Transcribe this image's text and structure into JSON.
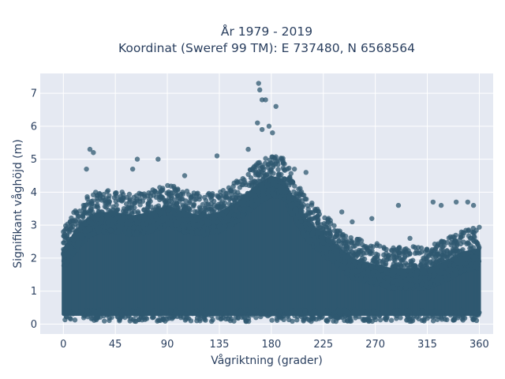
{
  "chart_data": {
    "type": "scatter",
    "title": "År 1979 - 2019",
    "subtitle": "Koordinat (Sweref 99 TM): E 737480, N 6568564",
    "xlabel": "Vågriktning (grader)",
    "ylabel": "Signifikant våghöjd (m)",
    "xlim": [
      -20,
      372
    ],
    "ylim": [
      -0.3,
      7.6
    ],
    "xticks": [
      0,
      45,
      90,
      135,
      180,
      225,
      270,
      315,
      360
    ],
    "yticks": [
      0,
      1,
      2,
      3,
      4,
      5,
      6,
      7
    ],
    "grid": true,
    "marker_color": "#2f5870",
    "background_color": "#e5e9f2",
    "envelope": {
      "directions": [
        0,
        10,
        20,
        30,
        45,
        60,
        75,
        90,
        105,
        120,
        135,
        150,
        160,
        170,
        180,
        190,
        200,
        210,
        225,
        240,
        250,
        260,
        270,
        285,
        300,
        315,
        330,
        345,
        360
      ],
      "dense_upper_m": [
        2.6,
        3.1,
        3.5,
        3.7,
        3.7,
        3.6,
        3.7,
        3.9,
        3.7,
        3.6,
        3.7,
        4.0,
        4.3,
        4.6,
        4.8,
        4.7,
        4.1,
        3.5,
        3.0,
        2.6,
        2.3,
        2.2,
        2.1,
        2.0,
        2.0,
        2.0,
        2.2,
        2.5,
        2.6
      ],
      "dense_lower_m": 0.3
    },
    "outliers": [
      {
        "x": 169,
        "y": 7.3
      },
      {
        "x": 170,
        "y": 7.1
      },
      {
        "x": 172,
        "y": 6.8
      },
      {
        "x": 175,
        "y": 6.8
      },
      {
        "x": 184,
        "y": 6.6
      },
      {
        "x": 168,
        "y": 6.1
      },
      {
        "x": 172,
        "y": 5.9
      },
      {
        "x": 178,
        "y": 6.0
      },
      {
        "x": 181,
        "y": 5.8
      },
      {
        "x": 23,
        "y": 5.3
      },
      {
        "x": 26,
        "y": 5.2
      },
      {
        "x": 64,
        "y": 5.0
      },
      {
        "x": 82,
        "y": 5.0
      },
      {
        "x": 133,
        "y": 5.1
      },
      {
        "x": 160,
        "y": 5.3
      },
      {
        "x": 20,
        "y": 4.7
      },
      {
        "x": 60,
        "y": 4.7
      },
      {
        "x": 105,
        "y": 4.5
      },
      {
        "x": 200,
        "y": 4.7
      },
      {
        "x": 210,
        "y": 4.6
      },
      {
        "x": 241,
        "y": 3.4
      },
      {
        "x": 250,
        "y": 3.1
      },
      {
        "x": 267,
        "y": 3.2
      },
      {
        "x": 290,
        "y": 3.6
      },
      {
        "x": 300,
        "y": 2.6
      },
      {
        "x": 320,
        "y": 3.7
      },
      {
        "x": 327,
        "y": 3.6
      },
      {
        "x": 340,
        "y": 3.7
      },
      {
        "x": 350,
        "y": 3.7
      },
      {
        "x": 355,
        "y": 3.6
      }
    ]
  }
}
